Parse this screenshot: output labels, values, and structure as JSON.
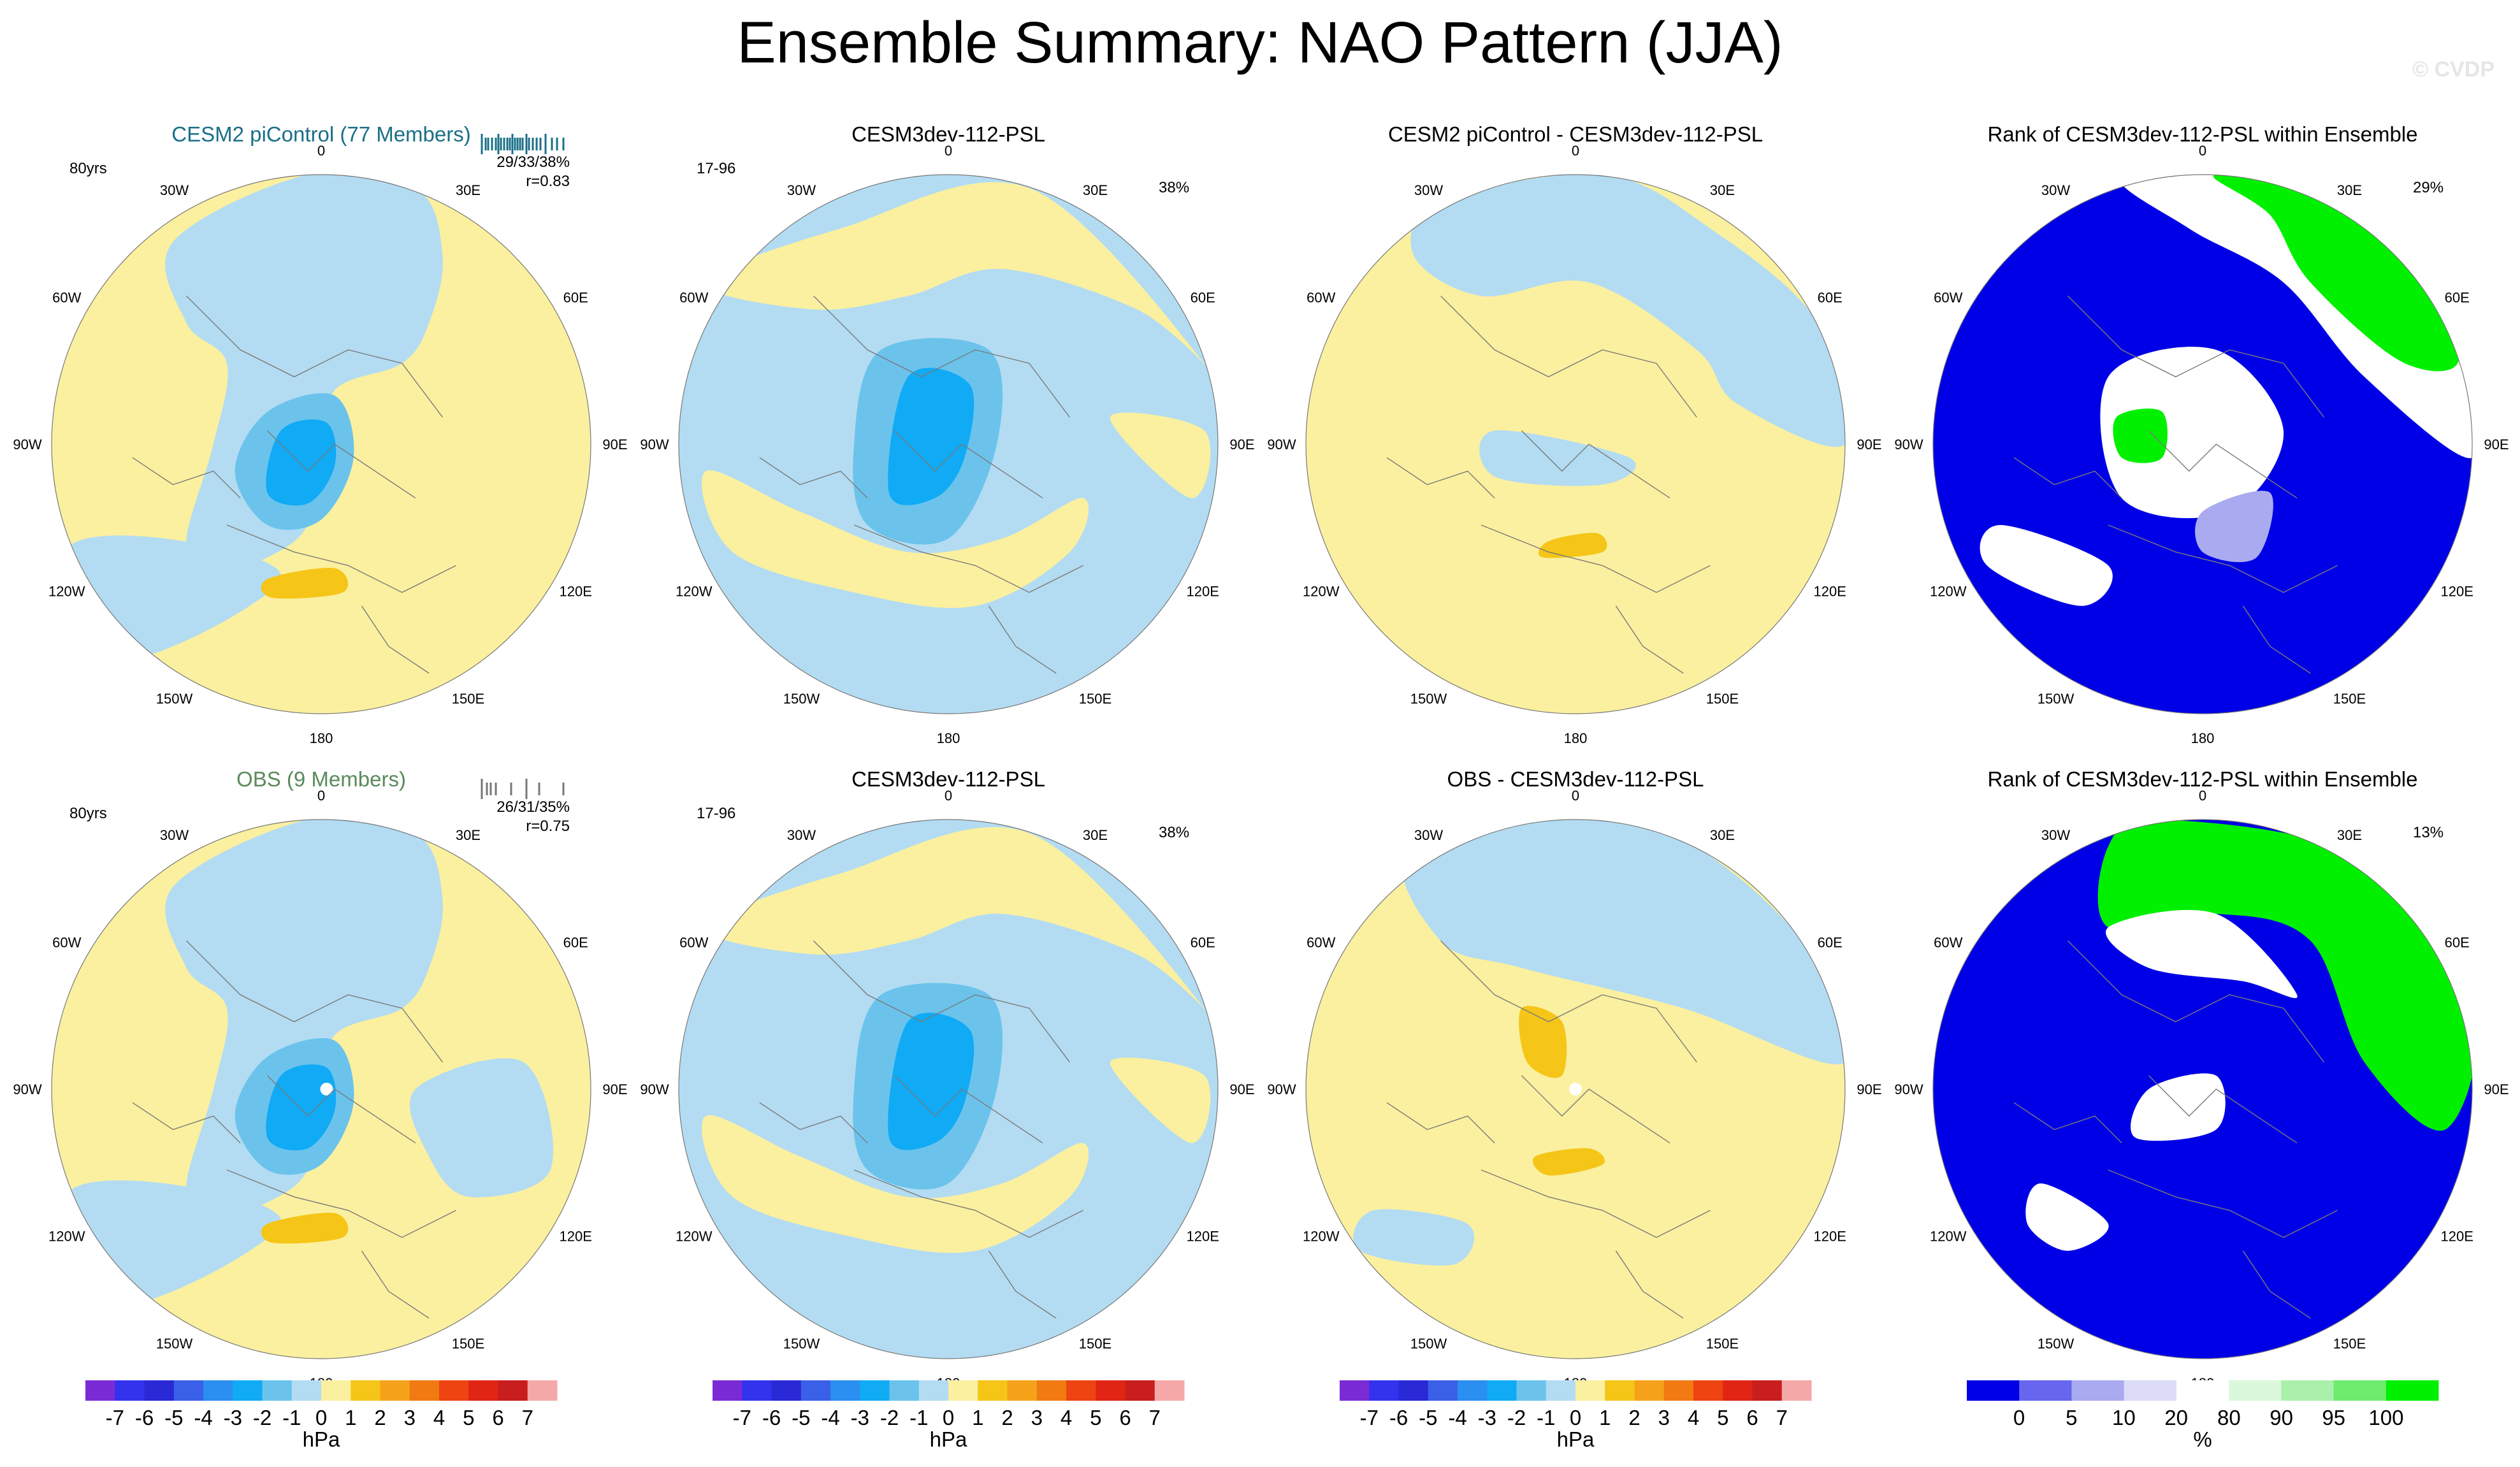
{
  "title": "Ensemble Summary: NAO Pattern (JJA)",
  "watermark": "© CVDP",
  "colors": {
    "neg_fill": "#b3dcf2",
    "pos_fill": "#fbf09f",
    "rank_low": "#0000e6",
    "rank_high": "#00f000",
    "title_cesm2": "#1a6f88",
    "title_obs": "#5a8a5a"
  },
  "rows": [
    {
      "panels": [
        {
          "id": "cesm2",
          "title": "CESM2 piControl (77 Members)",
          "left_text": "80yrs",
          "stats": "29/33/38%",
          "corr": "r=0.83",
          "type": "ensemble"
        },
        {
          "id": "dev",
          "title": "CESM3dev-112-PSL",
          "left_text": "17-96",
          "right_text": "38%",
          "type": "model"
        },
        {
          "id": "diff",
          "title": "CESM2 piControl - CESM3dev-112-PSL",
          "type": "diff"
        },
        {
          "id": "rank",
          "title": "Rank of CESM3dev-112-PSL within Ensemble",
          "right_text": "29%",
          "type": "rank"
        }
      ]
    },
    {
      "panels": [
        {
          "id": "obs",
          "title": "OBS (9 Members)",
          "left_text": "80yrs",
          "stats": "26/31/35%",
          "corr": "r=0.75",
          "type": "ensemble"
        },
        {
          "id": "dev",
          "title": "CESM3dev-112-PSL",
          "left_text": "17-96",
          "right_text": "38%",
          "type": "model"
        },
        {
          "id": "diff",
          "title": "OBS - CESM3dev-112-PSL",
          "type": "diff"
        },
        {
          "id": "rank",
          "title": "Rank of CESM3dev-112-PSL within Ensemble",
          "right_text": "13%",
          "type": "rank"
        }
      ]
    }
  ],
  "lon_labels": [
    "180",
    "150E",
    "120E",
    "90E",
    "60E",
    "30E",
    "0",
    "30W",
    "60W",
    "90W",
    "120W",
    "150W"
  ],
  "chart_data": {
    "type": "polar-contour-map",
    "projection": "north polar stereographic",
    "variable": "NAO pattern (sea level pressure, JJA)",
    "colorbar_psl": {
      "unit": "hPa",
      "ticks": [
        "-7",
        "-6",
        "-5",
        "-4",
        "-3",
        "-2",
        "-1",
        "0",
        "1",
        "2",
        "3",
        "4",
        "5",
        "6",
        "7"
      ],
      "colors": [
        "#7b2bd6",
        "#3333ee",
        "#2929d6",
        "#3960e6",
        "#2a8ff0",
        "#11aaf5",
        "#6bc3ec",
        "#b3dcf2",
        "#fbf09f",
        "#f5c518",
        "#f5a21a",
        "#f27a12",
        "#ee4411",
        "#e12514",
        "#c81e1e",
        "#f5a8a8"
      ]
    },
    "colorbar_rank": {
      "unit": "%",
      "ticks": [
        "0",
        "5",
        "10",
        "20",
        "80",
        "90",
        "95",
        "100"
      ],
      "colors": [
        "#0000e6",
        "#6666ee",
        "#aaaaf0",
        "#dcdcf8",
        "#ffffff",
        "#dcf8dc",
        "#aaf0aa",
        "#6eec6e",
        "#00f000"
      ]
    },
    "panel_values": {
      "cesm2_stats": "29/33/38%",
      "cesm2_r": 0.83,
      "obs_stats": "26/31/35%",
      "obs_r": 0.75,
      "dev_pattern_pct": 38,
      "rank_top_pct": 29,
      "rank_bottom_pct": 13
    }
  }
}
